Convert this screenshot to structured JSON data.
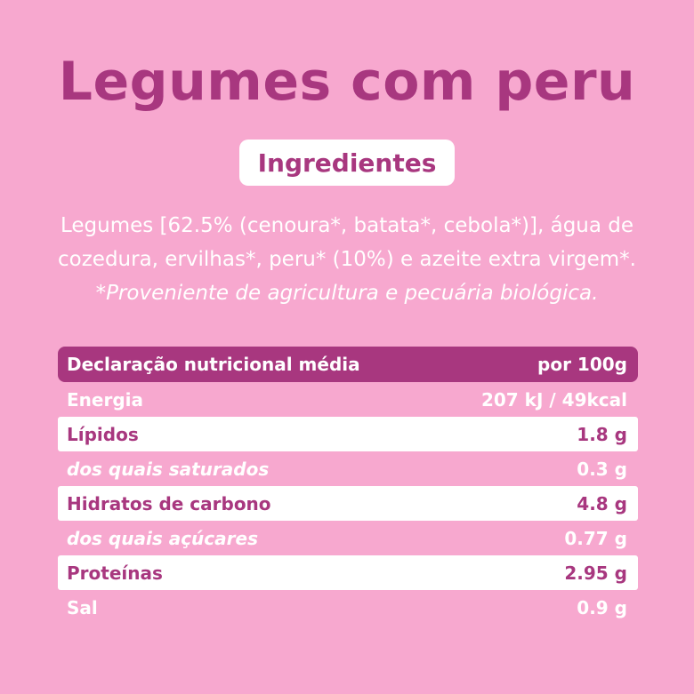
{
  "title": "Legumes com peru",
  "ingredients_label": "Ingredientes",
  "ingredients_line1": "Legumes [62.5% (cenoura*, batata*, cebola*)], água de",
  "ingredients_line2": "cozedura, ervilhas*, peru* (10%) e azeite extra virgem*.",
  "ingredients_note": "*Proveniente de agricultura e pecuária biológica.",
  "table": {
    "header": {
      "label": "Declaração nutricional média",
      "value": "por 100g"
    },
    "rows": [
      {
        "label": "Energia",
        "value": "207 kJ / 49kcal"
      },
      {
        "label": "Lípidos",
        "value": "1.8 g"
      },
      {
        "label": "dos quais saturados",
        "value": "0.3 g"
      },
      {
        "label": "Hidratos de carbono",
        "value": "4.8 g"
      },
      {
        "label": "dos quais açúcares",
        "value": "0.77 g"
      },
      {
        "label": "Proteínas",
        "value": "2.95 g"
      },
      {
        "label": "Sal",
        "value": "0.9 g"
      }
    ]
  },
  "colors": {
    "background": "#f7a8cf",
    "accent": "#a8377f",
    "white": "#ffffff"
  }
}
